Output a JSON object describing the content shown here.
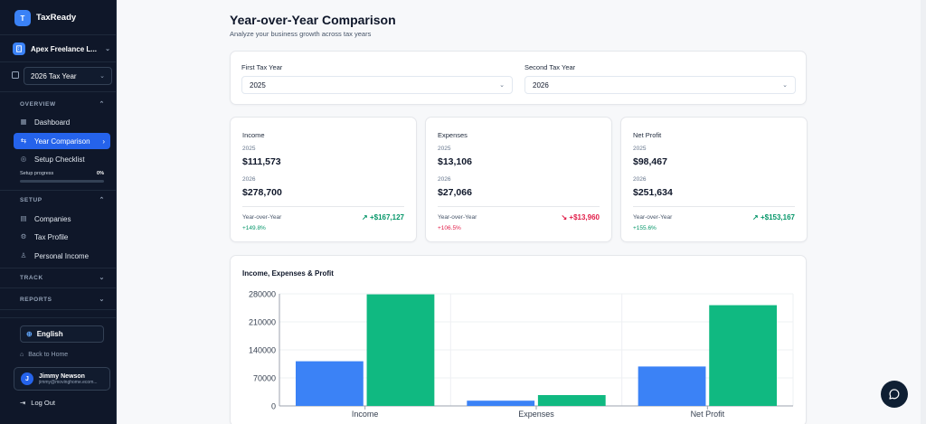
{
  "app": {
    "logo_letter": "T",
    "name": "TaxReady"
  },
  "company": {
    "name": "Apex Freelance L...",
    "icon": "building-icon"
  },
  "tax_year_select": {
    "value": "2026 Tax Year"
  },
  "sections": {
    "overview": "OVERVIEW",
    "setup": "SETUP",
    "track": "TRACK",
    "reports": "REPORTS"
  },
  "nav": {
    "dashboard": "Dashboard",
    "year_comparison": "Year Comparison",
    "setup_checklist": "Setup Checklist",
    "companies": "Companies",
    "tax_profile": "Tax Profile",
    "personal_income": "Personal Income"
  },
  "setup_progress": {
    "label": "Setup progress",
    "value_text": "0%",
    "value": 0
  },
  "language": {
    "label": "English"
  },
  "back_home": "Back to Home",
  "user": {
    "initial": "J",
    "name": "Jimmy Newson",
    "email": "jimmy@movinghome.ecom..."
  },
  "logout": "Log Out",
  "page": {
    "title": "Year-over-Year Comparison",
    "subtitle": "Analyze your business growth across tax years"
  },
  "year_select": {
    "first_label": "First Tax Year",
    "first_value": "2025",
    "second_label": "Second Tax Year",
    "second_value": "2026"
  },
  "metrics": [
    {
      "title": "Income",
      "year1": "2025",
      "value1": "$111,573",
      "year2": "2026",
      "value2": "$278,700",
      "yoy_label": "Year-over-Year",
      "delta": "+$167,127",
      "pct": "+149.8%",
      "trend": "up",
      "color": "#059669"
    },
    {
      "title": "Expenses",
      "year1": "2025",
      "value1": "$13,106",
      "year2": "2026",
      "value2": "$27,066",
      "yoy_label": "Year-over-Year",
      "delta": "+$13,960",
      "pct": "+106.5%",
      "trend": "down",
      "color": "#e11d48"
    },
    {
      "title": "Net Profit",
      "year1": "2025",
      "value1": "$98,467",
      "year2": "2026",
      "value2": "$251,634",
      "yoy_label": "Year-over-Year",
      "delta": "+$153,167",
      "pct": "+155.6%",
      "trend": "up",
      "color": "#059669"
    }
  ],
  "chart_data": {
    "type": "bar",
    "title": "Income, Expenses & Profit",
    "categories": [
      "Income",
      "Expenses",
      "Net Profit"
    ],
    "series": [
      {
        "values": [
          111573,
          13106,
          98467
        ],
        "color": "#3b82f6"
      },
      {
        "values": [
          278700,
          27066,
          251634
        ],
        "color": "#10b981"
      }
    ],
    "ylim": [
      0,
      280000
    ],
    "yticks": [
      0,
      70000,
      140000,
      210000,
      280000
    ],
    "grid": true
  }
}
